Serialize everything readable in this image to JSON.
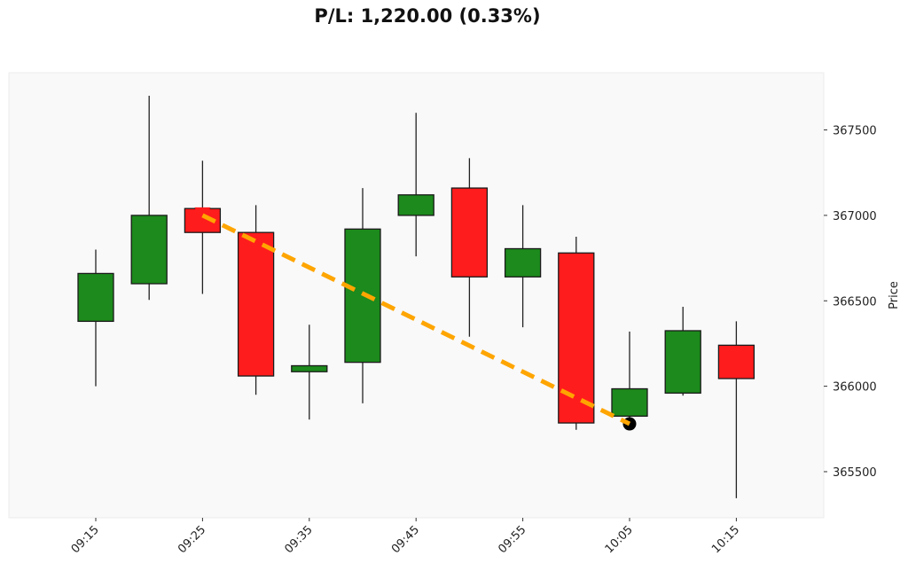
{
  "title": "P/L: 1,220.00 (0.33%)",
  "colors": {
    "up": "#1c8a1c",
    "down": "#ff1c1c",
    "trade_line": "#ffa500",
    "plot_bg": "#f9f9f9",
    "plot_border": "#ececec",
    "entry_marker": "#ff1c1c",
    "exit_marker": "#000000"
  },
  "chart_data": {
    "type": "candlestick",
    "title": "P/L: 1,220.00 (0.33%)",
    "xlabel": "",
    "ylabel": "Price",
    "ylim": [
      365230,
      367835
    ],
    "yticks": [
      365500,
      366000,
      366500,
      367000,
      367500
    ],
    "xtick_labels": [
      "09:15",
      "09:25",
      "09:35",
      "09:45",
      "09:55",
      "10:05",
      "10:15"
    ],
    "grid": false,
    "categories": [
      "09:15",
      "09:20",
      "09:25",
      "09:30",
      "09:35",
      "09:40",
      "09:45",
      "09:50",
      "09:55",
      "10:00",
      "10:05",
      "10:10",
      "10:15"
    ],
    "candles": [
      {
        "time": "09:15",
        "open": 366380,
        "high": 366800,
        "low": 366000,
        "close": 366660
      },
      {
        "time": "09:20",
        "open": 366600,
        "high": 367700,
        "low": 366505,
        "close": 367000
      },
      {
        "time": "09:25",
        "open": 367040,
        "high": 367320,
        "low": 366540,
        "close": 366900
      },
      {
        "time": "09:30",
        "open": 366900,
        "high": 367060,
        "low": 365950,
        "close": 366060
      },
      {
        "time": "09:35",
        "open": 366085,
        "high": 366360,
        "low": 365805,
        "close": 366120
      },
      {
        "time": "09:40",
        "open": 366140,
        "high": 367160,
        "low": 365900,
        "close": 366920
      },
      {
        "time": "09:45",
        "open": 367000,
        "high": 367600,
        "low": 366760,
        "close": 367120
      },
      {
        "time": "09:50",
        "open": 367160,
        "high": 367335,
        "low": 366290,
        "close": 366640
      },
      {
        "time": "09:55",
        "open": 366640,
        "high": 367060,
        "low": 366345,
        "close": 366805
      },
      {
        "time": "10:00",
        "open": 366780,
        "high": 366875,
        "low": 365745,
        "close": 365785
      },
      {
        "time": "10:05",
        "open": 365825,
        "high": 366320,
        "low": 365815,
        "close": 365985
      },
      {
        "time": "10:10",
        "open": 365960,
        "high": 366465,
        "low": 365945,
        "close": 366325
      },
      {
        "time": "10:15",
        "open": 366240,
        "high": 366380,
        "low": 365345,
        "close": 366045
      }
    ],
    "trade": {
      "entry": {
        "time": "09:25",
        "price": 367000,
        "marker": "triangle-down"
      },
      "exit": {
        "time": "10:05",
        "price": 365780,
        "marker": "circle"
      },
      "pl": 1220.0,
      "pl_pct": 0.33
    }
  }
}
